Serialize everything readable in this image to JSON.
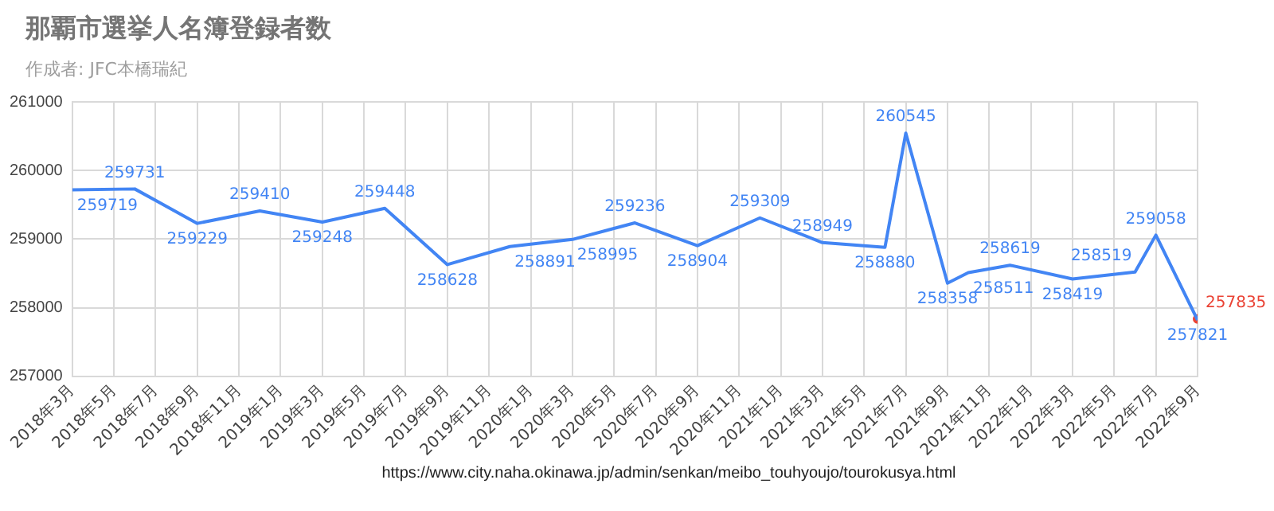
{
  "chart_data": {
    "type": "line",
    "title": "那覇市選挙人名簿登録者数",
    "subtitle": "作成者: JFC本橋瑞紀",
    "annotations": [
      "https://www.city.naha.okinawa.jp/admin/senkan/meibo_touhyoujo/tourokusya.html"
    ],
    "series": [
      {
        "color": "#4285f4",
        "x": [
          "2018-03",
          "2018-06",
          "2018-09",
          "2018-12",
          "2019-03",
          "2019-06",
          "2019-09",
          "2019-12",
          "2020-03",
          "2020-06",
          "2020-09",
          "2020-12",
          "2021-03",
          "2021-06",
          "2021-07",
          "2021-09",
          "2021-10",
          "2021-12",
          "2022-03",
          "2022-06",
          "2022-07",
          "2022-09"
        ],
        "values": [
          259719,
          259731,
          259229,
          259410,
          259248,
          259448,
          258628,
          258891,
          258995,
          259236,
          258904,
          259309,
          258949,
          258880,
          260545,
          258358,
          258511,
          258619,
          258419,
          258519,
          259058,
          257821
        ]
      },
      {
        "color": "#ea4335",
        "x": [
          "2022-09"
        ],
        "values": [
          257835
        ],
        "marker": "circle"
      }
    ],
    "data_labels": true,
    "marker": "none",
    "grid": true,
    "legend": false,
    "xlim": [
      "2018-03",
      "2022-09"
    ],
    "xticks": [
      {
        "value": "2018-03",
        "label": "2018年3月"
      },
      {
        "value": "2018-05",
        "label": "2018年5月"
      },
      {
        "value": "2018-07",
        "label": "2018年7月"
      },
      {
        "value": "2018-09",
        "label": "2018年9月"
      },
      {
        "value": "2018-11",
        "label": "2018年11月"
      },
      {
        "value": "2019-01",
        "label": "2019年1月"
      },
      {
        "value": "2019-03",
        "label": "2019年3月"
      },
      {
        "value": "2019-05",
        "label": "2019年5月"
      },
      {
        "value": "2019-07",
        "label": "2019年7月"
      },
      {
        "value": "2019-09",
        "label": "2019年9月"
      },
      {
        "value": "2019-11",
        "label": "2019年11月"
      },
      {
        "value": "2020-01",
        "label": "2020年1月"
      },
      {
        "value": "2020-03",
        "label": "2020年3月"
      },
      {
        "value": "2020-05",
        "label": "2020年5月"
      },
      {
        "value": "2020-07",
        "label": "2020年7月"
      },
      {
        "value": "2020-09",
        "label": "2020年9月"
      },
      {
        "value": "2020-11",
        "label": "2020年11月"
      },
      {
        "value": "2021-01",
        "label": "2021年1月"
      },
      {
        "value": "2021-03",
        "label": "2021年3月"
      },
      {
        "value": "2021-05",
        "label": "2021年5月"
      },
      {
        "value": "2021-07",
        "label": "2021年7月"
      },
      {
        "value": "2021-09",
        "label": "2021年9月"
      },
      {
        "value": "2021-11",
        "label": "2021年11月"
      },
      {
        "value": "2022-01",
        "label": "2022年1月"
      },
      {
        "value": "2022-03",
        "label": "2022年3月"
      },
      {
        "value": "2022-05",
        "label": "2022年5月"
      },
      {
        "value": "2022-07",
        "label": "2022年7月"
      },
      {
        "value": "2022-09",
        "label": "2022年9月"
      }
    ],
    "ylim": [
      257000,
      261000
    ],
    "yticks": [
      257000,
      258000,
      259000,
      260000,
      261000
    ]
  }
}
